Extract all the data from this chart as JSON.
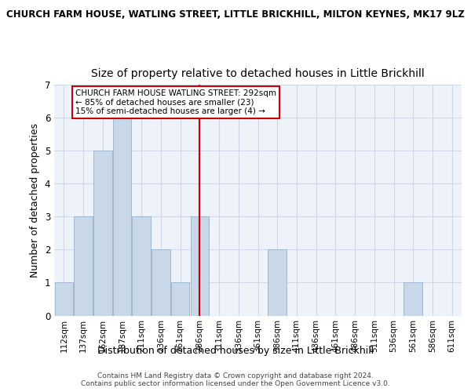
{
  "title_line1": "CHURCH FARM HOUSE, WATLING STREET, LITTLE BRICKHILL, MILTON KEYNES, MK17 9LZ",
  "title_line2": "Size of property relative to detached houses in Little Brickhill",
  "xlabel": "Distribution of detached houses by size in Little Brickhill",
  "ylabel": "Number of detached properties",
  "footnote": "Contains HM Land Registry data © Crown copyright and database right 2024.\nContains public sector information licensed under the Open Government Licence v3.0.",
  "bin_labels": [
    "112sqm",
    "137sqm",
    "162sqm",
    "187sqm",
    "211sqm",
    "236sqm",
    "261sqm",
    "286sqm",
    "311sqm",
    "336sqm",
    "361sqm",
    "386sqm",
    "411sqm",
    "436sqm",
    "461sqm",
    "486sqm",
    "511sqm",
    "536sqm",
    "561sqm",
    "586sqm",
    "611sqm"
  ],
  "bar_heights": [
    1,
    3,
    5,
    6,
    3,
    2,
    1,
    3,
    0,
    0,
    0,
    2,
    0,
    0,
    0,
    0,
    0,
    0,
    1,
    0,
    0
  ],
  "bar_color": "#c8d8e8",
  "bar_edge_color": "#a0b8d0",
  "vline_x": 6.97,
  "vline_color": "#cc0000",
  "annotation_text": "CHURCH FARM HOUSE WATLING STREET: 292sqm\n← 85% of detached houses are smaller (23)\n15% of semi-detached houses are larger (4) →",
  "annotation_box_color": "#ffffff",
  "annotation_box_edge": "#cc0000",
  "ylim": [
    0,
    7
  ],
  "yticks": [
    0,
    1,
    2,
    3,
    4,
    5,
    6,
    7
  ],
  "grid_color": "#d0d8e8",
  "background_color": "#eef2f9",
  "title1_fontsize": 8.5,
  "subtitle_fontsize": 10,
  "axis_label_fontsize": 9,
  "tick_fontsize": 7.5,
  "footnote_fontsize": 6.5
}
